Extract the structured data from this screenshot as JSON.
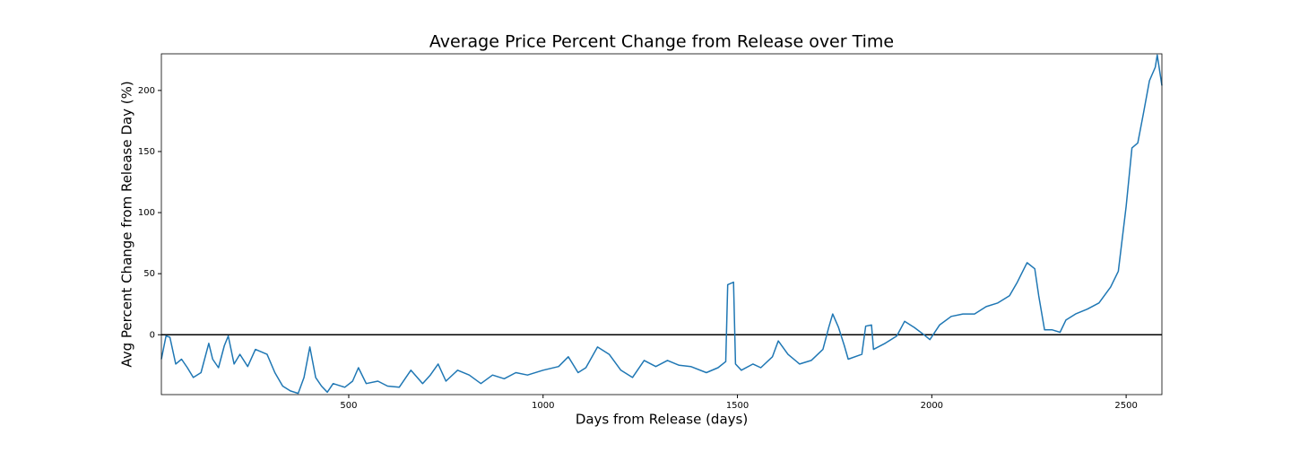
{
  "chart_data": {
    "type": "line",
    "title": "Average Price Percent Change from Release over Time",
    "xlabel": "Days from Release (days)",
    "ylabel": "Avg Percent Change from Release Day (%)",
    "x": [
      18,
      30,
      40,
      55,
      70,
      85,
      100,
      120,
      140,
      150,
      165,
      180,
      190,
      205,
      220,
      240,
      260,
      290,
      310,
      330,
      350,
      370,
      385,
      400,
      415,
      430,
      445,
      460,
      490,
      510,
      525,
      545,
      575,
      600,
      630,
      660,
      690,
      710,
      730,
      750,
      780,
      810,
      840,
      870,
      900,
      930,
      960,
      1000,
      1040,
      1065,
      1090,
      1110,
      1140,
      1170,
      1200,
      1230,
      1260,
      1290,
      1320,
      1350,
      1380,
      1420,
      1450,
      1470,
      1475,
      1490,
      1495,
      1510,
      1540,
      1560,
      1590,
      1605,
      1630,
      1660,
      1690,
      1720,
      1735,
      1745,
      1760,
      1775,
      1785,
      1820,
      1830,
      1845,
      1850,
      1880,
      1910,
      1930,
      1955,
      1980,
      1995,
      2020,
      2050,
      2080,
      2110,
      2140,
      2170,
      2200,
      2220,
      2245,
      2265,
      2275,
      2290,
      2310,
      2330,
      2345,
      2370,
      2400,
      2430,
      2460,
      2480,
      2500,
      2515,
      2530,
      2545,
      2560,
      2575,
      2580,
      2592
    ],
    "values": [
      -20,
      -1,
      -2,
      -24,
      -20,
      -27,
      -35,
      -31,
      -7,
      -20,
      -27,
      -9,
      -1,
      -24,
      -16,
      -26,
      -12,
      -16,
      -31,
      -42,
      -46,
      -48,
      -35,
      -10,
      -35,
      -42,
      -47,
      -40,
      -43,
      -38,
      -27,
      -40,
      -38,
      -42,
      -43,
      -29,
      -40,
      -33,
      -24,
      -38,
      -29,
      -33,
      -40,
      -33,
      -36,
      -31,
      -33,
      -29,
      -26,
      -18,
      -31,
      -27,
      -10,
      -16,
      -29,
      -35,
      -21,
      -26,
      -21,
      -25,
      -26,
      -31,
      -27,
      -22,
      41,
      43,
      -24,
      -29,
      -24,
      -27,
      -18,
      -5,
      -16,
      -24,
      -21,
      -12,
      6,
      17,
      6,
      -9,
      -20,
      -16,
      7,
      8,
      -12,
      -7,
      -1,
      11,
      6,
      0,
      -4,
      8,
      15,
      17,
      17,
      23,
      26,
      32,
      43,
      59,
      54,
      32,
      4,
      4,
      2,
      12,
      17,
      21,
      26,
      39,
      52,
      105,
      153,
      157,
      182,
      208,
      219,
      229,
      204
    ],
    "color": "#1f77b4",
    "hline": 0,
    "hline_color": "#000000",
    "xlim": [
      18,
      2592
    ],
    "ylim": [
      -49,
      230
    ],
    "xticks": [
      500,
      1000,
      1500,
      2000,
      2500
    ],
    "yticks": [
      0,
      50,
      100,
      150,
      200
    ]
  }
}
